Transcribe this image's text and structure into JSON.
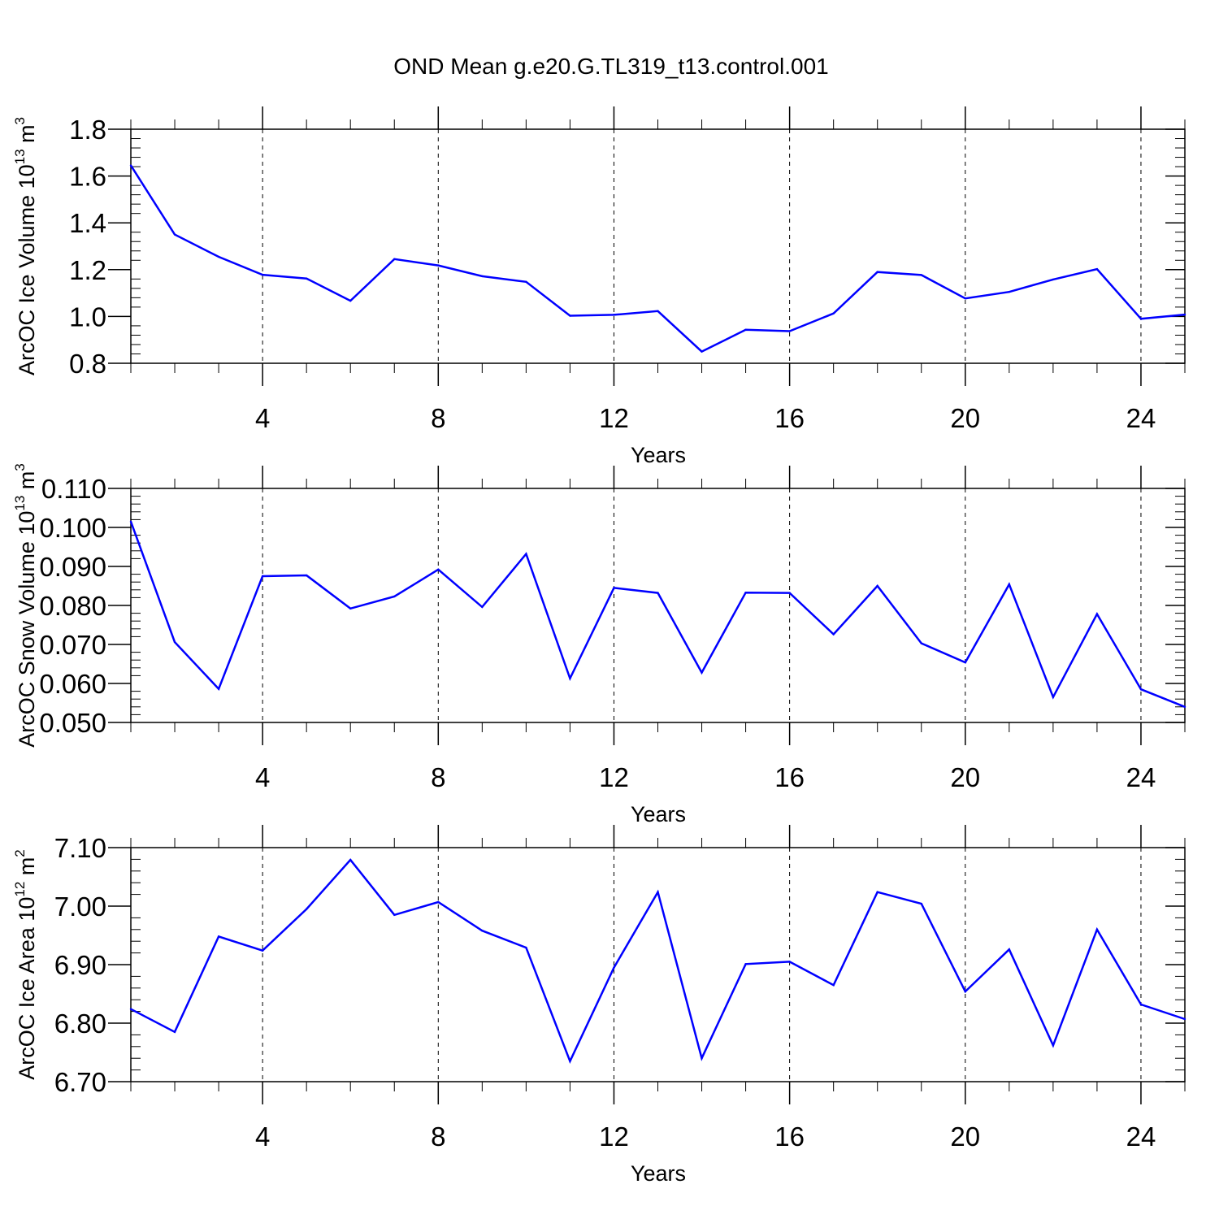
{
  "page_title": "OND Mean g.e20.G.TL319_t13.control.001",
  "chart_data": [
    {
      "type": "line",
      "xlabel": "Years",
      "ylabel_main": "ArcOC Ice Volume 10",
      "ylabel_sup": "13",
      "ylabel_unit": " m",
      "ylabel_unit_sup": "3",
      "xlim": [
        1,
        25
      ],
      "ylim": [
        0.8,
        1.8
      ],
      "xticks": [
        4,
        8,
        12,
        16,
        20,
        24
      ],
      "xtick_labels": [
        "4",
        "8",
        "12",
        "16",
        "20",
        "24"
      ],
      "yticks": [
        0.8,
        1.0,
        1.2,
        1.4,
        1.6,
        1.8
      ],
      "ytick_labels": [
        "0.8",
        "1.0",
        "1.2",
        "1.4",
        "1.6",
        "1.8"
      ],
      "grid": "vertical dashed at major x ticks",
      "color": "#0000ff",
      "x": [
        1,
        2,
        3,
        4,
        5,
        6,
        7,
        8,
        9,
        10,
        11,
        12,
        13,
        14,
        15,
        16,
        17,
        18,
        19,
        20,
        21,
        22,
        23,
        24,
        25
      ],
      "values": [
        1.645,
        1.35,
        1.255,
        1.178,
        1.162,
        1.067,
        1.245,
        1.218,
        1.172,
        1.148,
        1.003,
        1.007,
        1.023,
        0.85,
        0.943,
        0.937,
        1.013,
        1.19,
        1.177,
        1.077,
        1.105,
        1.158,
        1.202,
        0.99,
        1.008
      ]
    },
    {
      "type": "line",
      "xlabel": "Years",
      "ylabel_main": "ArcOC Snow Volume 10",
      "ylabel_sup": "13",
      "ylabel_unit": " m",
      "ylabel_unit_sup": "3",
      "xlim": [
        1,
        25
      ],
      "ylim": [
        0.05,
        0.11
      ],
      "xticks": [
        4,
        8,
        12,
        16,
        20,
        24
      ],
      "xtick_labels": [
        "4",
        "8",
        "12",
        "16",
        "20",
        "24"
      ],
      "yticks": [
        0.05,
        0.06,
        0.07,
        0.08,
        0.09,
        0.1,
        0.11
      ],
      "ytick_labels": [
        "0.050",
        "0.060",
        "0.070",
        "0.080",
        "0.090",
        "0.100",
        "0.110"
      ],
      "grid": "vertical dashed at major x ticks",
      "color": "#0000ff",
      "x": [
        1,
        2,
        3,
        4,
        5,
        6,
        7,
        8,
        9,
        10,
        11,
        12,
        13,
        14,
        15,
        16,
        17,
        18,
        19,
        20,
        21,
        22,
        23,
        24,
        25
      ],
      "values": [
        0.1015,
        0.0706,
        0.0586,
        0.0875,
        0.0877,
        0.0792,
        0.0823,
        0.0892,
        0.0796,
        0.0932,
        0.0613,
        0.0845,
        0.0832,
        0.0628,
        0.0833,
        0.0832,
        0.0726,
        0.085,
        0.0703,
        0.0654,
        0.0854,
        0.0565,
        0.0778,
        0.0585,
        0.054
      ]
    },
    {
      "type": "line",
      "xlabel": "Years",
      "ylabel_main": "ArcOC Ice Area 10",
      "ylabel_sup": "12",
      "ylabel_unit": " m",
      "ylabel_unit_sup": "2",
      "xlim": [
        1,
        25
      ],
      "ylim": [
        6.7,
        7.1
      ],
      "xticks": [
        4,
        8,
        12,
        16,
        20,
        24
      ],
      "xtick_labels": [
        "4",
        "8",
        "12",
        "16",
        "20",
        "24"
      ],
      "yticks": [
        6.7,
        6.8,
        6.9,
        7.0,
        7.1
      ],
      "ytick_labels": [
        "6.70",
        "6.80",
        "6.90",
        "7.00",
        "7.10"
      ],
      "grid": "vertical dashed at major x ticks",
      "color": "#0000ff",
      "x": [
        1,
        2,
        3,
        4,
        5,
        6,
        7,
        8,
        9,
        10,
        11,
        12,
        13,
        14,
        15,
        16,
        17,
        18,
        19,
        20,
        21,
        22,
        23,
        24,
        25
      ],
      "values": [
        6.824,
        6.785,
        6.948,
        6.924,
        6.995,
        7.079,
        6.985,
        7.007,
        6.958,
        6.929,
        6.735,
        6.895,
        7.024,
        6.74,
        6.901,
        6.905,
        6.865,
        7.024,
        7.004,
        6.854,
        6.926,
        6.762,
        6.96,
        6.832,
        6.807
      ]
    }
  ]
}
